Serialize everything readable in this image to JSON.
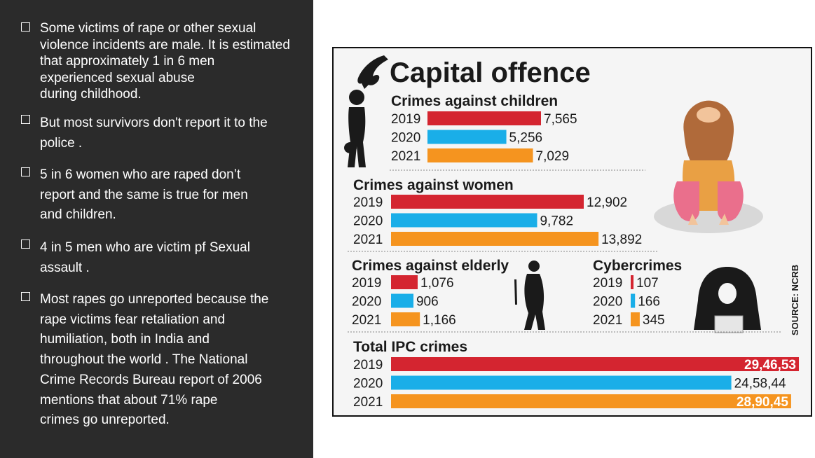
{
  "bullets": [
    {
      "text": "Some victims of rape or other sexual\nviolence incidents are male. It is estimated\nthat approximately 1 in 6 men\nexperienced sexual abuse\nduring childhood."
    },
    {
      "text": "But most survivors don't report it to the\npolice ."
    },
    {
      "text": "5 in 6 women who are raped don’t\nreport and the same is true for men\nand children."
    },
    {
      "text": " 4 in 5 men who are victim pf Sexual\nassault ."
    },
    {
      "text": "Most rapes go unreported because the\nrape victims fear retaliation and\nhumiliation, both in India and\nthroughout the world . The National\nCrime Records Bureau report of 2006\nmentions that about 71% rape\ncrimes go unreported."
    }
  ],
  "chart_data": {
    "type": "bar",
    "title": "Capital offence",
    "source": "SOURCE: NCRB",
    "years": [
      "2019",
      "2020",
      "2021"
    ],
    "colors": {
      "2019": "#d42530",
      "2020": "#1aaee8",
      "2021": "#f5941f"
    },
    "groups": [
      {
        "id": "children",
        "title": "Crimes against children",
        "values": [
          7565,
          5256,
          7029
        ],
        "labels": [
          "7,565",
          "5,256",
          "7,029"
        ]
      },
      {
        "id": "women",
        "title": "Crimes against women",
        "values": [
          12902,
          9782,
          13892
        ],
        "labels": [
          "12,902",
          "9,782",
          "13,892"
        ]
      },
      {
        "id": "elderly",
        "title": "Crimes against elderly",
        "values": [
          1076,
          906,
          1166
        ],
        "labels": [
          "1,076",
          "906",
          "1,166"
        ]
      },
      {
        "id": "cyber",
        "title": "Cybercrimes",
        "values": [
          107,
          166,
          345
        ],
        "labels": [
          "107",
          "166",
          "345"
        ]
      },
      {
        "id": "ipc",
        "title": "Total IPC crimes",
        "values": [
          294653,
          245844,
          289045
        ],
        "labels": [
          "29,46,53",
          "24,58,44",
          "28,90,45"
        ]
      }
    ]
  }
}
